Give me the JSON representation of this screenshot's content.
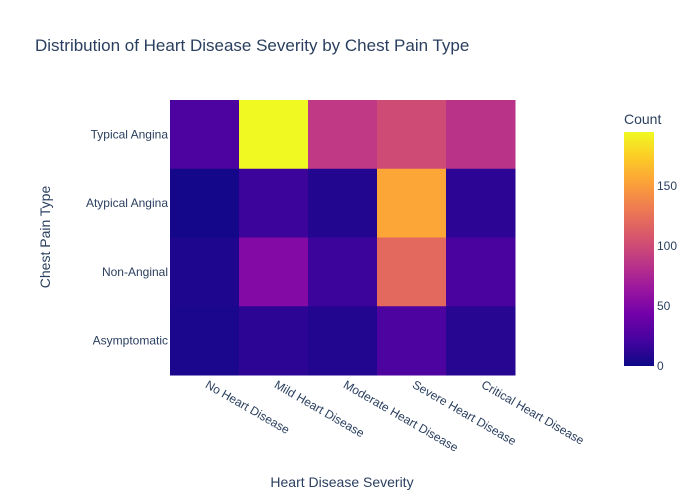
{
  "chart_data": {
    "type": "heatmap",
    "title": "Distribution of Heart Disease Severity by Chest Pain Type",
    "xlabel": "Heart Disease Severity",
    "ylabel": "Chest Pain Type",
    "x_categories": [
      "No Heart Disease",
      "Mild Heart Disease",
      "Moderate Heart Disease",
      "Severe Heart Disease",
      "Critical Heart Disease"
    ],
    "y_categories": [
      "Typical Angina",
      "Atypical Angina",
      "Non-Anginal",
      "Asymptomatic"
    ],
    "values": [
      [
        25,
        195,
        88,
        100,
        84
      ],
      [
        3,
        18,
        8,
        155,
        12
      ],
      [
        7,
        52,
        18,
        120,
        24
      ],
      [
        5,
        12,
        8,
        25,
        10
      ]
    ],
    "colorbar": {
      "title": "Count",
      "range": [
        0,
        195
      ],
      "ticks": [
        0,
        50,
        100,
        150
      ],
      "colorscale": [
        "#0d0887",
        "#46039f",
        "#7201a8",
        "#9c179e",
        "#bd3786",
        "#d8576b",
        "#ed7953",
        "#fb9f3a",
        "#fdca26",
        "#f0f921"
      ]
    },
    "legend": "none",
    "grid": false
  }
}
